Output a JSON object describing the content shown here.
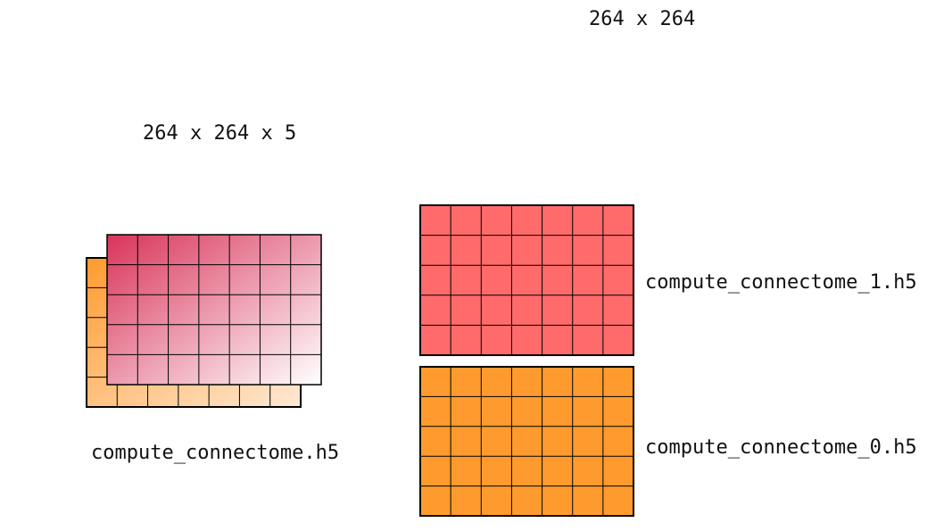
{
  "stack": {
    "dims_label": "264 x 264 x 5",
    "file_label": "compute_connectome.h5",
    "back_gradient": [
      "#ff9a2e",
      "#ffe9d4"
    ],
    "front_gradient": [
      "#d9345a",
      "#ffffff"
    ]
  },
  "slices": {
    "dims_label": "264 x 264",
    "items": [
      {
        "file_label": "compute_connectome_1.h5",
        "color": "#ff6b6b"
      },
      {
        "file_label": "compute_connectome_0.h5",
        "color": "#ff9b2e"
      }
    ]
  },
  "grid": {
    "rows": 5,
    "cols": 7,
    "line_color": "#000000"
  }
}
